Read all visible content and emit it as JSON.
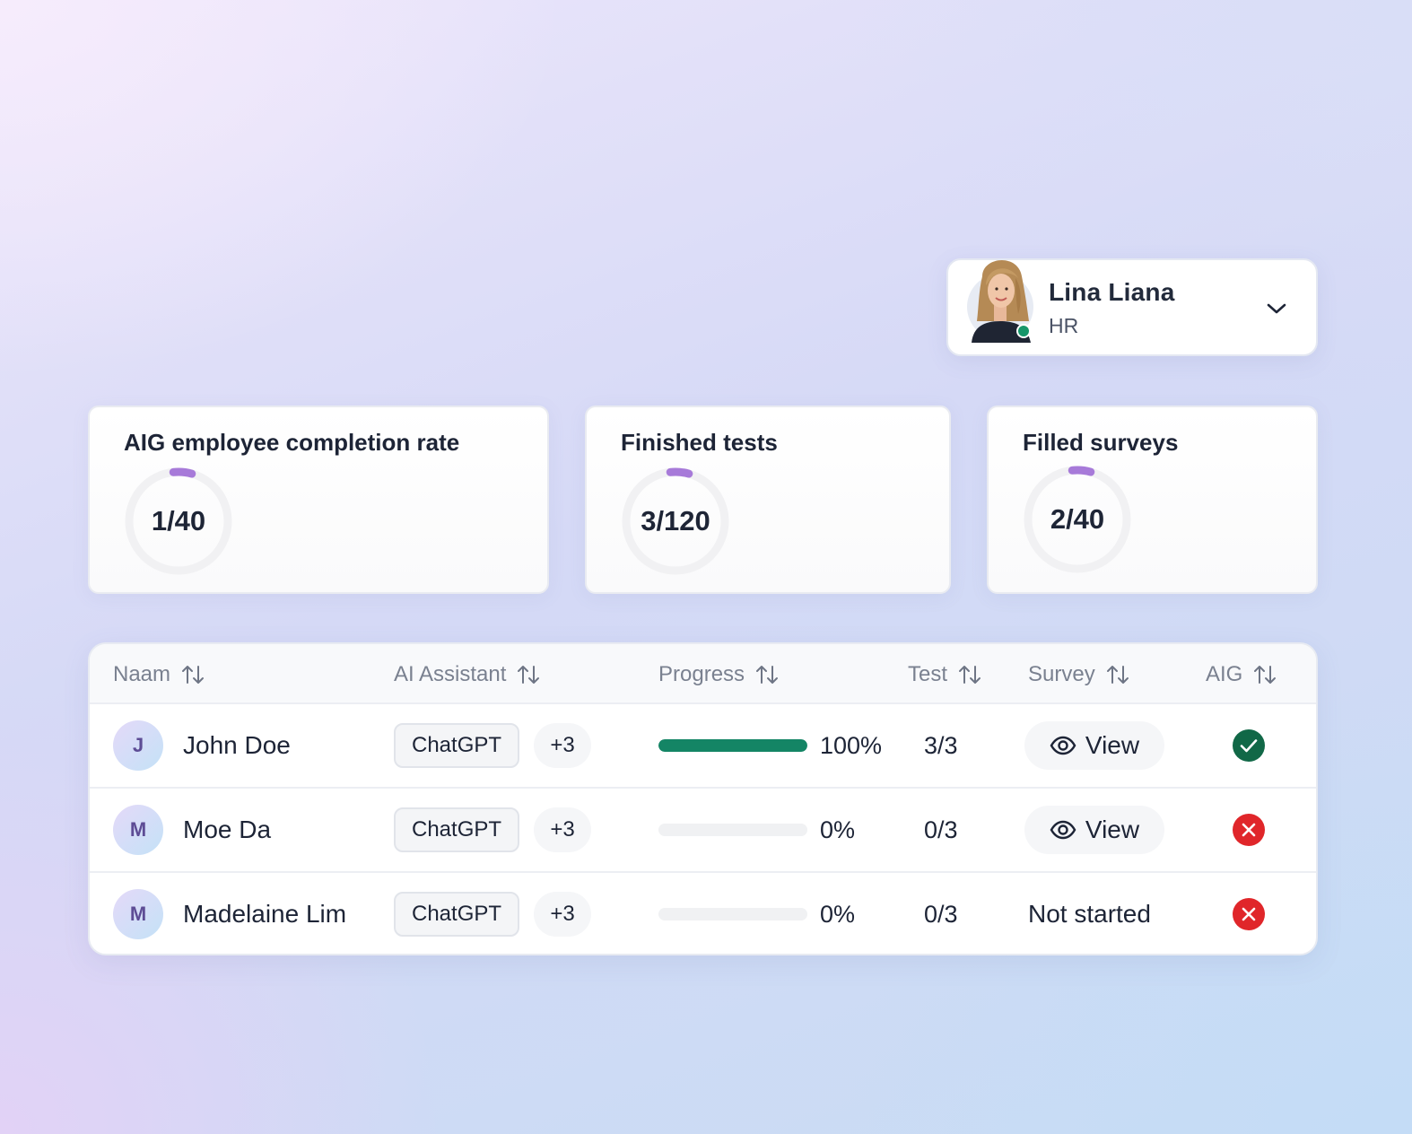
{
  "profile": {
    "name": "Lina Liana",
    "role": "HR",
    "status_color": "#16966a"
  },
  "stats": [
    {
      "title": "AIG employee completion rate",
      "value": "1/40",
      "fraction": 0.025
    },
    {
      "title": "Finished tests",
      "value": "3/120",
      "fraction": 0.025
    },
    {
      "title": "Filled surveys",
      "value": "2/40",
      "fraction": 0.05
    }
  ],
  "table": {
    "headers": {
      "name": "Naam",
      "assistant": "AI Assistant",
      "progress": "Progress",
      "test": "Test",
      "survey": "Survey",
      "aig": "AIG"
    },
    "rows": [
      {
        "initial": "J",
        "name": "John Doe",
        "assistant": "ChatGPT",
        "more": "+3",
        "progress_value": 1.0,
        "progress_label": "100%",
        "test": "3/3",
        "survey": "View",
        "aig_status": "check-icon"
      },
      {
        "initial": "M",
        "name": "Moe Da",
        "assistant": "ChatGPT",
        "more": "+3",
        "progress_value": 0.0,
        "progress_label": "0%",
        "test": "0/3",
        "survey": "View",
        "aig_status": "cross-icon"
      },
      {
        "initial": "M",
        "name": "Madelaine Lim",
        "assistant": "ChatGPT",
        "more": "+3",
        "progress_value": 0.0,
        "progress_label": "0%",
        "test": "0/3",
        "survey": "Not started",
        "aig_status": "cross-icon"
      }
    ]
  },
  "colors": {
    "accent_purple": "#a77ad9",
    "progress_green": "#148565",
    "success": "#116847",
    "error": "#e0262a"
  }
}
